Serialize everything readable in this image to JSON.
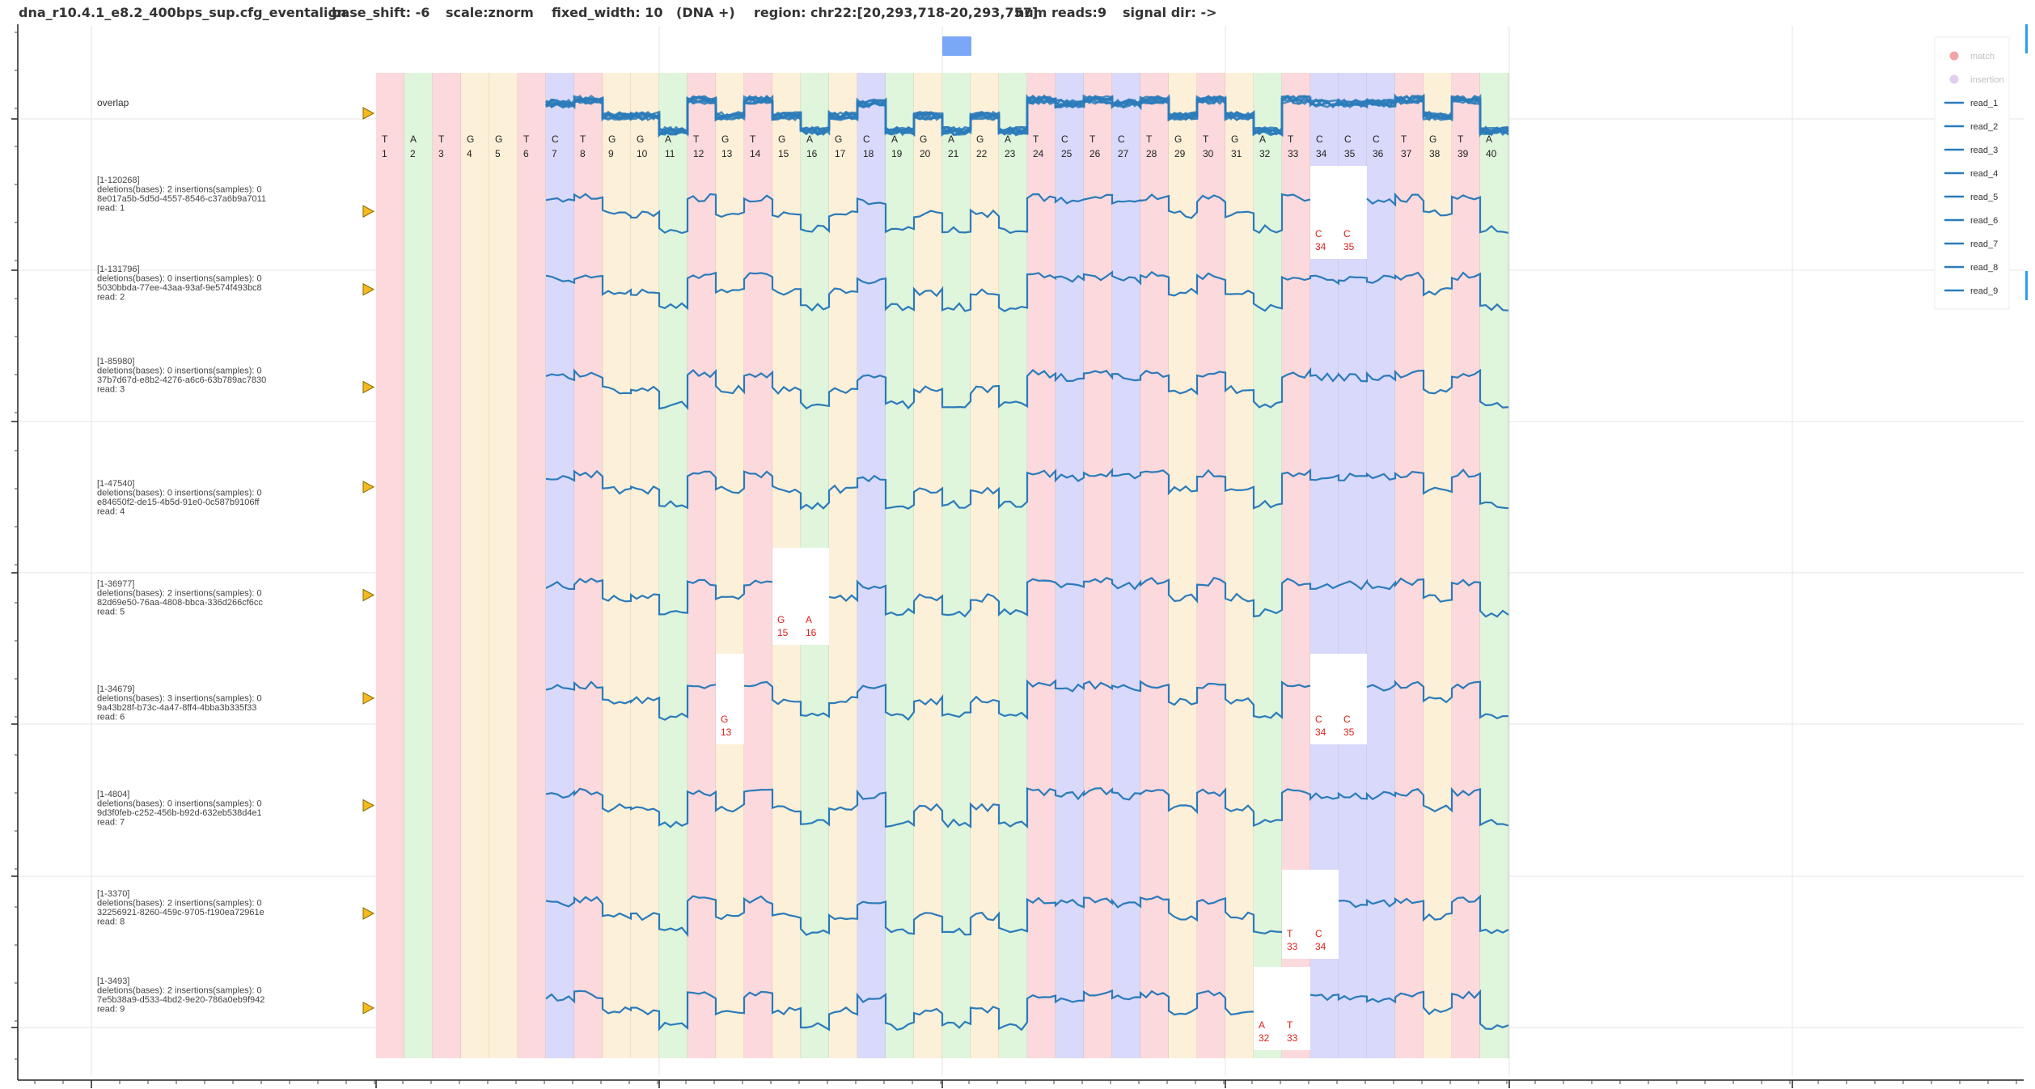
{
  "header": {
    "filename": "dna_r10.4.1_e8.2_400bps_sup.cfg_eventalign",
    "base_shift": "base_shift: -6",
    "scale": "scale:znorm",
    "fixed_width": "fixed_width: 10",
    "strand": "(DNA +)",
    "region": "region: chr22:[20,293,718-20,293,757]",
    "num_reads": "num reads:9",
    "signal_dir": "signal dir: ->"
  },
  "toolbar": {
    "pan_box_color": "#7ba7f7"
  },
  "colors": {
    "A": "#dff5dc",
    "C": "#d9d9fb",
    "G": "#fdf0d8",
    "T": "#fcd9dc",
    "signal": "#2b7bba",
    "deletion_text": "#e0201c",
    "marker": "#f5b921"
  },
  "overlap_label": "overlap",
  "reads": [
    {
      "range": "[1-120268]",
      "stats": "deletions(bases): 2 insertions(samples): 0",
      "uuid": "8e017a5b-5d5d-4557-8546-c37a6b9a7011",
      "read": "read: 1",
      "deletions": [
        {
          "base": "C",
          "pos": "34"
        },
        {
          "base": "C",
          "pos": "35"
        }
      ]
    },
    {
      "range": "[1-131796]",
      "stats": "deletions(bases): 0 insertions(samples): 0",
      "uuid": "5030bbda-77ee-43aa-93af-9e574f493bc8",
      "read": "read: 2",
      "deletions": []
    },
    {
      "range": "[1-85980]",
      "stats": "deletions(bases): 0 insertions(samples): 0",
      "uuid": "37b7d67d-e8b2-4276-a6c6-63b789ac7830",
      "read": "read: 3",
      "deletions": []
    },
    {
      "range": "[1-47540]",
      "stats": "deletions(bases): 0 insertions(samples): 0",
      "uuid": "e84650f2-de15-4b5d-91e0-0c587b9106ff",
      "read": "read: 4",
      "deletions": []
    },
    {
      "range": "[1-36977]",
      "stats": "deletions(bases): 2 insertions(samples): 0",
      "uuid": "82d69e50-76aa-4808-bbca-336d266cf6cc",
      "read": "read: 5",
      "deletions": [
        {
          "base": "G",
          "pos": "15"
        },
        {
          "base": "A",
          "pos": "16"
        }
      ]
    },
    {
      "range": "[1-34679]",
      "stats": "deletions(bases): 3 insertions(samples): 0",
      "uuid": "9a43b28f-b73c-4a47-8ff4-4bba3b335f33",
      "read": "read: 6",
      "deletions": [
        {
          "base": "G",
          "pos": "13"
        },
        {
          "base": "C",
          "pos": "34"
        },
        {
          "base": "C",
          "pos": "35"
        }
      ]
    },
    {
      "range": "[1-4804]",
      "stats": "deletions(bases): 0 insertions(samples): 0",
      "uuid": "9d3f0feb-c252-456b-b92d-632eb538d4e1",
      "read": "read: 7",
      "deletions": []
    },
    {
      "range": "[1-3370]",
      "stats": "deletions(bases): 2 insertions(samples): 0",
      "uuid": "32256921-8260-459c-9705-f190ea72961e",
      "read": "read: 8",
      "deletions": [
        {
          "base": "T",
          "pos": "33"
        },
        {
          "base": "C",
          "pos": "34"
        }
      ]
    },
    {
      "range": "[1-3493]",
      "stats": "deletions(bases): 2 insertions(samples): 0",
      "uuid": "7e5b38a9-d533-4bd2-9e20-786a0eb9f942",
      "read": "read: 9",
      "deletions": [
        {
          "base": "A",
          "pos": "32"
        },
        {
          "base": "T",
          "pos": "33"
        }
      ]
    }
  ],
  "legend": {
    "items": [
      {
        "label": "match",
        "kind": "dot",
        "color": "#f4a3a6"
      },
      {
        "label": "insertion",
        "kind": "dot",
        "color": "#e2cdee"
      },
      {
        "label": "read_1",
        "kind": "line",
        "color": "#2b7bba"
      },
      {
        "label": "read_2",
        "kind": "line",
        "color": "#2b7bba"
      },
      {
        "label": "read_3",
        "kind": "line",
        "color": "#2b7bba"
      },
      {
        "label": "read_4",
        "kind": "line",
        "color": "#2b7bba"
      },
      {
        "label": "read_5",
        "kind": "line",
        "color": "#2b7bba"
      },
      {
        "label": "read_6",
        "kind": "line",
        "color": "#2b7bba"
      },
      {
        "label": "read_7",
        "kind": "line",
        "color": "#2b7bba"
      },
      {
        "label": "read_8",
        "kind": "line",
        "color": "#2b7bba"
      },
      {
        "label": "read_9",
        "kind": "line",
        "color": "#2b7bba"
      }
    ]
  },
  "chart_data": {
    "type": "line",
    "sequence": [
      "T",
      "A",
      "T",
      "G",
      "G",
      "T",
      "C",
      "T",
      "G",
      "G",
      "A",
      "T",
      "G",
      "T",
      "G",
      "A",
      "G",
      "C",
      "A",
      "G",
      "A",
      "G",
      "A",
      "T",
      "C",
      "T",
      "C",
      "T",
      "G",
      "T",
      "G",
      "A",
      "T",
      "C",
      "C",
      "C",
      "T",
      "G",
      "T",
      "A"
    ],
    "positions": [
      1,
      2,
      3,
      4,
      5,
      6,
      7,
      8,
      9,
      10,
      11,
      12,
      13,
      14,
      15,
      16,
      17,
      18,
      19,
      20,
      21,
      22,
      23,
      24,
      25,
      26,
      27,
      28,
      29,
      30,
      31,
      32,
      33,
      34,
      35,
      36,
      37,
      38,
      39,
      40
    ],
    "signal_start_position": 7,
    "level_by_base": {
      "A": -1.0,
      "C": 0.55,
      "G": -0.15,
      "T": 0.75
    },
    "series": [
      {
        "name": "read_1",
        "start_position": 7,
        "deleted_positions": [
          34,
          35
        ]
      },
      {
        "name": "read_2",
        "start_position": 7,
        "deleted_positions": []
      },
      {
        "name": "read_3",
        "start_position": 7,
        "deleted_positions": []
      },
      {
        "name": "read_4",
        "start_position": 7,
        "deleted_positions": []
      },
      {
        "name": "read_5",
        "start_position": 7,
        "deleted_positions": [
          15,
          16
        ]
      },
      {
        "name": "read_6",
        "start_position": 7,
        "deleted_positions": [
          13,
          34,
          35
        ]
      },
      {
        "name": "read_7",
        "start_position": 7,
        "deleted_positions": []
      },
      {
        "name": "read_8",
        "start_position": 7,
        "deleted_positions": [
          33,
          34
        ]
      },
      {
        "name": "read_9",
        "start_position": 7,
        "deleted_positions": [
          32,
          33
        ]
      }
    ]
  }
}
